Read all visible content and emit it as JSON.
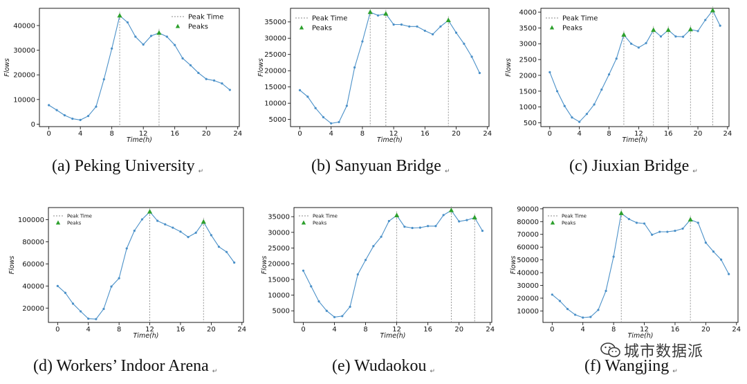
{
  "figure": {
    "legend": {
      "line": "Peak Time",
      "marker": "Peaks"
    },
    "return_mark": "↵",
    "watermark": "城市数据派",
    "colors": {
      "line": "#4a90c8",
      "peak": "#2ca02c",
      "vline": "#888888",
      "axis": "#000000"
    }
  },
  "chart_data": [
    {
      "type": "line",
      "caption": "(a) Peking University",
      "xlabel": "Time(h)",
      "ylabel": "Flows",
      "xlim": [
        -1.2,
        24.2
      ],
      "ylim": [
        -1000,
        47000
      ],
      "xticks": [
        0,
        4,
        8,
        12,
        16,
        20,
        24
      ],
      "yticks": [
        0,
        10000,
        20000,
        30000,
        40000
      ],
      "x": [
        0,
        1,
        2,
        3,
        4,
        5,
        6,
        7,
        8,
        9,
        10,
        11,
        12,
        13,
        14,
        15,
        16,
        17,
        18,
        19,
        20,
        21,
        22,
        23
      ],
      "values": [
        7700,
        5700,
        3600,
        2200,
        1700,
        3300,
        7100,
        18200,
        30700,
        44000,
        41300,
        35500,
        32300,
        35800,
        37000,
        35500,
        32100,
        26700,
        23900,
        20800,
        18300,
        17700,
        16500,
        13900
      ],
      "peaks": [
        9,
        14
      ],
      "legend_position": "top-right"
    },
    {
      "type": "line",
      "caption": "(b) Sanyuan Bridge",
      "xlabel": "Time(h)",
      "ylabel": "Flows",
      "xlim": [
        -1.2,
        24.2
      ],
      "ylim": [
        2800,
        39200
      ],
      "xticks": [
        0,
        4,
        8,
        12,
        16,
        20,
        24
      ],
      "yticks": [
        5000,
        10000,
        15000,
        20000,
        25000,
        30000,
        35000
      ],
      "x": [
        0,
        1,
        2,
        3,
        4,
        5,
        6,
        7,
        8,
        9,
        10,
        11,
        12,
        13,
        14,
        15,
        16,
        17,
        18,
        19,
        20,
        21,
        22,
        23
      ],
      "values": [
        14000,
        12000,
        8500,
        5700,
        3800,
        4200,
        9200,
        21000,
        29000,
        38000,
        37000,
        37500,
        34200,
        34200,
        33600,
        33600,
        32300,
        31200,
        33600,
        35500,
        31700,
        28300,
        24300,
        19300
      ],
      "peaks": [
        9,
        11,
        19
      ],
      "legend_position": "top-left"
    },
    {
      "type": "line",
      "caption": "(c) Jiuxian Bridge",
      "xlabel": "Time(h)",
      "ylabel": "Flows",
      "xlim": [
        -1.2,
        24.2
      ],
      "ylim": [
        380,
        4120
      ],
      "xticks": [
        0,
        4,
        8,
        12,
        16,
        20,
        24
      ],
      "yticks": [
        500,
        1000,
        1500,
        2000,
        2500,
        3000,
        3500,
        4000
      ],
      "x": [
        0,
        1,
        2,
        3,
        4,
        5,
        6,
        7,
        8,
        9,
        10,
        11,
        12,
        13,
        14,
        15,
        16,
        17,
        18,
        19,
        20,
        21,
        22,
        23
      ],
      "values": [
        2100,
        1500,
        1030,
        670,
        530,
        780,
        1080,
        1550,
        2030,
        2530,
        3280,
        3000,
        2880,
        3020,
        3430,
        3230,
        3430,
        3230,
        3220,
        3450,
        3400,
        3750,
        4050,
        3570
      ],
      "peaks": [
        10,
        14,
        16,
        19,
        22
      ],
      "legend_position": "top-left"
    },
    {
      "type": "line",
      "caption": "(d) Workers’ Indoor Arena",
      "xlabel": "Time(h)",
      "ylabel": "Flows",
      "xlim": [
        -1.2,
        24.2
      ],
      "ylim": [
        7000,
        111000
      ],
      "xticks": [
        0,
        4,
        8,
        12,
        16,
        20,
        24
      ],
      "yticks": [
        20000,
        40000,
        60000,
        80000,
        100000
      ],
      "x": [
        0,
        1,
        2,
        3,
        4,
        5,
        6,
        7,
        8,
        9,
        10,
        11,
        12,
        13,
        14,
        15,
        16,
        17,
        18,
        19,
        20,
        21,
        22,
        23
      ],
      "values": [
        40000,
        33800,
        24000,
        17000,
        10400,
        10000,
        19200,
        39500,
        47000,
        74000,
        90000,
        100300,
        107200,
        99000,
        95800,
        92800,
        89200,
        84300,
        88200,
        98000,
        86000,
        75500,
        70800,
        61200
      ],
      "peaks": [
        12,
        19
      ],
      "legend_position": "top-left"
    },
    {
      "type": "line",
      "caption": "(e) Wudaokou",
      "xlabel": "Time(h)",
      "ylabel": "Flows",
      "xlim": [
        -1.2,
        24.2
      ],
      "ylim": [
        1300,
        37900
      ],
      "xticks": [
        0,
        4,
        8,
        12,
        16,
        20,
        24
      ],
      "yticks": [
        5000,
        10000,
        15000,
        20000,
        25000,
        30000,
        35000
      ],
      "x": [
        0,
        1,
        2,
        3,
        4,
        5,
        6,
        7,
        8,
        9,
        10,
        11,
        12,
        13,
        14,
        15,
        16,
        17,
        18,
        19,
        20,
        21,
        22,
        23
      ],
      "values": [
        17800,
        12800,
        8000,
        5000,
        3000,
        3300,
        6300,
        16600,
        21200,
        25600,
        28600,
        33600,
        35400,
        31800,
        31400,
        31500,
        32000,
        32000,
        35500,
        37000,
        33500,
        33900,
        34700,
        30500
      ],
      "peaks": [
        12,
        19,
        22
      ],
      "legend_position": "top-left"
    },
    {
      "type": "line",
      "caption": "(f) Wangjing",
      "xlabel": "Time(h)",
      "ylabel": "Flows",
      "xlim": [
        -1.2,
        24.2
      ],
      "ylim": [
        1000,
        91000
      ],
      "xticks": [
        0,
        4,
        8,
        12,
        16,
        20,
        24
      ],
      "yticks": [
        10000,
        20000,
        30000,
        40000,
        50000,
        60000,
        70000,
        80000,
        90000
      ],
      "x": [
        0,
        1,
        2,
        3,
        4,
        5,
        6,
        7,
        8,
        9,
        10,
        11,
        12,
        13,
        14,
        15,
        16,
        17,
        18,
        19,
        20,
        21,
        22,
        23
      ],
      "values": [
        22800,
        17800,
        11500,
        7000,
        4800,
        5300,
        10800,
        25700,
        52500,
        86500,
        82000,
        79100,
        78500,
        69700,
        72000,
        72000,
        72800,
        74500,
        81500,
        79100,
        63500,
        56500,
        50200,
        38900
      ],
      "peaks": [
        9,
        18
      ],
      "legend_position": "top-left"
    }
  ]
}
